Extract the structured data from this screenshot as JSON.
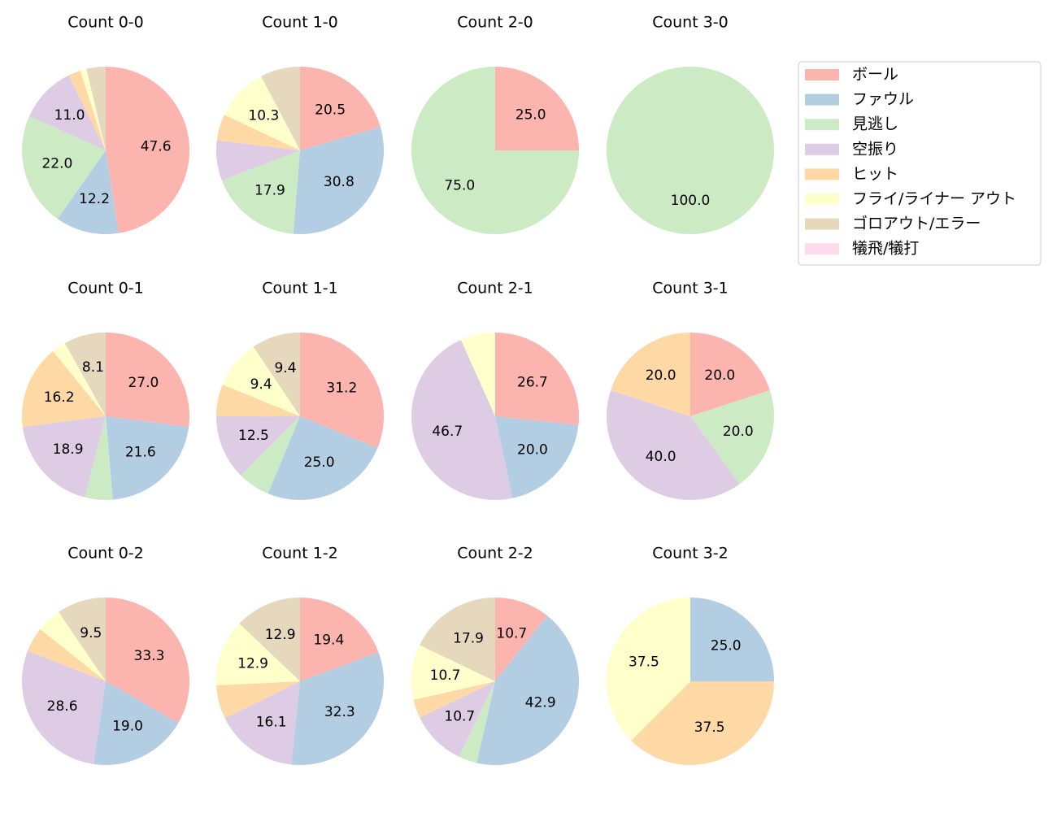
{
  "legend": {
    "labels": [
      "ボール",
      "ファウル",
      "見逃し",
      "空振り",
      "ヒット",
      "フライ/ライナー アウト",
      "ゴロアウト/エラー",
      "犠飛/犠打"
    ],
    "colors": [
      "#fbb4ae",
      "#b3cde3",
      "#ccebc5",
      "#decbe4",
      "#fed9a6",
      "#ffffcc",
      "#e5d8bd",
      "#fddaec"
    ]
  },
  "chart_data": [
    {
      "type": "pie",
      "title": "Count 0-0",
      "values": [
        47.6,
        12.2,
        22.0,
        11.0,
        2.4,
        1.2,
        3.7,
        0
      ],
      "value_labels": [
        "47.6",
        "12.2",
        "22.0",
        "11.0",
        null,
        null,
        null,
        null
      ]
    },
    {
      "type": "pie",
      "title": "Count 1-0",
      "values": [
        20.5,
        30.8,
        17.9,
        7.7,
        5.1,
        10.3,
        7.7,
        0
      ],
      "value_labels": [
        "20.5",
        "30.8",
        "17.9",
        null,
        null,
        "10.3",
        null,
        null
      ]
    },
    {
      "type": "pie",
      "title": "Count 2-0",
      "values": [
        25.0,
        0,
        75.0,
        0,
        0,
        0,
        0,
        0
      ],
      "value_labels": [
        "25.0",
        null,
        "75.0",
        null,
        null,
        null,
        null,
        null
      ]
    },
    {
      "type": "pie",
      "title": "Count 3-0",
      "values": [
        0,
        0,
        100.0,
        0,
        0,
        0,
        0,
        0
      ],
      "value_labels": [
        null,
        null,
        "100.0",
        null,
        null,
        null,
        null,
        null
      ]
    },
    {
      "type": "pie",
      "title": "Count 0-1",
      "values": [
        27.0,
        21.6,
        5.4,
        18.9,
        16.2,
        2.7,
        8.1,
        0
      ],
      "value_labels": [
        "27.0",
        "21.6",
        null,
        "18.9",
        "16.2",
        null,
        "8.1",
        null
      ]
    },
    {
      "type": "pie",
      "title": "Count 1-1",
      "values": [
        31.2,
        25.0,
        6.2,
        12.5,
        6.2,
        9.4,
        9.4,
        0
      ],
      "value_labels": [
        "31.2",
        "25.0",
        null,
        "12.5",
        null,
        "9.4",
        "9.4",
        null
      ]
    },
    {
      "type": "pie",
      "title": "Count 2-1",
      "values": [
        26.7,
        20.0,
        0,
        46.7,
        0,
        6.7,
        0,
        0
      ],
      "value_labels": [
        "26.7",
        "20.0",
        null,
        "46.7",
        null,
        null,
        null,
        null
      ]
    },
    {
      "type": "pie",
      "title": "Count 3-1",
      "values": [
        20.0,
        0,
        20.0,
        40.0,
        20.0,
        0,
        0,
        0
      ],
      "value_labels": [
        "20.0",
        null,
        "20.0",
        "40.0",
        "20.0",
        null,
        null,
        null
      ]
    },
    {
      "type": "pie",
      "title": "Count 0-2",
      "values": [
        33.3,
        19.0,
        0,
        28.6,
        4.8,
        4.8,
        9.5,
        0
      ],
      "value_labels": [
        "33.3",
        "19.0",
        null,
        "28.6",
        null,
        null,
        "9.5",
        null
      ]
    },
    {
      "type": "pie",
      "title": "Count 1-2",
      "values": [
        19.4,
        32.3,
        0,
        16.1,
        6.5,
        12.9,
        12.9,
        0
      ],
      "value_labels": [
        "19.4",
        "32.3",
        null,
        "16.1",
        null,
        "12.9",
        "12.9",
        null
      ]
    },
    {
      "type": "pie",
      "title": "Count 2-2",
      "values": [
        10.7,
        42.9,
        3.6,
        10.7,
        3.6,
        10.7,
        17.9,
        0
      ],
      "value_labels": [
        "10.7",
        "42.9",
        null,
        "10.7",
        null,
        "10.7",
        "17.9",
        null
      ]
    },
    {
      "type": "pie",
      "title": "Count 3-2",
      "values": [
        0,
        25.0,
        0,
        0,
        37.5,
        37.5,
        0,
        0
      ],
      "value_labels": [
        null,
        "25.0",
        null,
        null,
        "37.5",
        "37.5",
        null,
        null
      ]
    }
  ]
}
